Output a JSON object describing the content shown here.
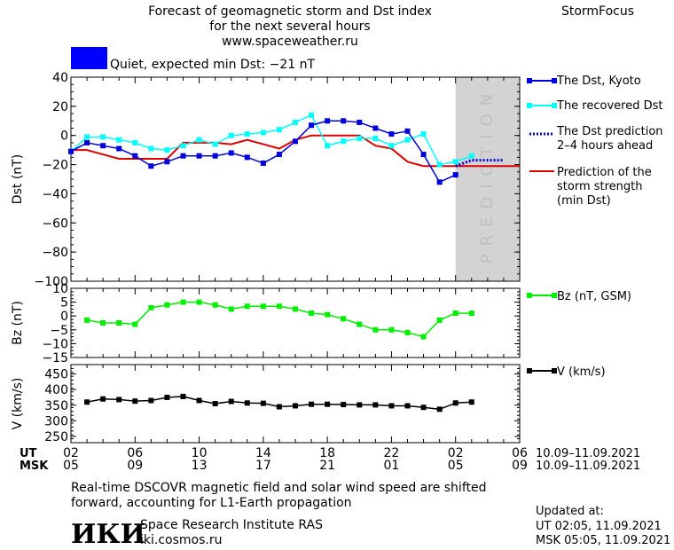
{
  "header": {
    "title_lines": [
      "Forecast of geomagnetic storm and Dst index",
      "for the next several hours",
      "www.spaceweather.ru"
    ],
    "brand": "StormFocus",
    "status_text": "Quiet, expected min Dst: −21 nT"
  },
  "footer": {
    "note_lines": [
      "Real-time DSCOVR magnetic field and solar wind speed are shifted",
      "forward, accounting for L1-Earth propagation"
    ],
    "institute": "Space Research Institute RAS",
    "website": "iki.cosmos.ru",
    "logo_text": "ИКИ",
    "updated_label": "Updated at:",
    "updated_ut": "UT   02:05, 11.09.2021",
    "updated_msk": "MSK 05:05, 11.09.2021"
  },
  "colors": {
    "kyoto": "#0000dd",
    "recovered": "#00ffff",
    "prediction": "#0000dd",
    "strength": "#dd0000",
    "bz": "#00ee00",
    "v": "#000000",
    "prediction_band": "#d3d3d3",
    "status_box": "#0000ff"
  },
  "chart_data": [
    {
      "type": "line",
      "ylabel": "Dst (nT)",
      "ylim": [
        -100,
        40
      ],
      "yticks": [
        "40",
        "20",
        "0",
        "−20",
        "−40",
        "−60",
        "−80",
        "−100"
      ],
      "ytick_values": [
        40,
        20,
        0,
        -20,
        -40,
        -60,
        -80,
        -100
      ],
      "xlim": [
        0,
        28
      ],
      "prediction_band": {
        "x_start": 24,
        "x_end": 28,
        "label": "PREDICTION"
      },
      "series": [
        {
          "name": "The Dst, Kyoto",
          "marker": "square",
          "x": [
            0,
            1,
            2,
            3,
            4,
            5,
            6,
            7,
            8,
            9,
            10,
            11,
            12,
            13,
            14,
            15,
            16,
            17,
            18,
            19,
            20,
            21,
            22,
            23,
            24
          ],
          "y": [
            -11,
            -5,
            -7,
            -9,
            -14,
            -21,
            -18,
            -14,
            -14,
            -14,
            -12,
            -15,
            -19,
            -13,
            -4,
            7,
            10,
            10,
            9,
            5,
            1,
            3,
            -13,
            -32,
            -27
          ]
        },
        {
          "name": "The recovered Dst",
          "marker": "square",
          "x": [
            0,
            1,
            2,
            3,
            4,
            5,
            6,
            7,
            8,
            9,
            10,
            11,
            12,
            13,
            14,
            15,
            16,
            17,
            18,
            19,
            20,
            21,
            22,
            23,
            24,
            25
          ],
          "y": [
            -11,
            -1,
            -1,
            -3,
            -5,
            -9,
            -10,
            -7,
            -3,
            -6,
            0,
            1,
            2,
            4,
            9,
            14,
            -7,
            -4,
            -2,
            -2,
            -7,
            -3,
            1,
            -20,
            -18,
            -14
          ]
        },
        {
          "name": "The Dst prediction 2–4 hours ahead",
          "style": "dotted",
          "x": [
            24,
            25,
            26,
            27
          ],
          "y": [
            -21,
            -17,
            -17,
            -17
          ]
        },
        {
          "name": "Prediction of the storm strength (min Dst)",
          "style": "step",
          "x": [
            0,
            1,
            2,
            3,
            4,
            5,
            6,
            7,
            8,
            9,
            10,
            11,
            12,
            13,
            14,
            15,
            16,
            17,
            18,
            19,
            20,
            21,
            22,
            23,
            24,
            25,
            26,
            27,
            28
          ],
          "y": [
            -10,
            -10,
            -13,
            -16,
            -16,
            -16,
            -16,
            -5,
            -5,
            -5,
            -6,
            -3,
            -6,
            -9,
            -3,
            0,
            0,
            0,
            0,
            -7,
            -9,
            -18,
            -21,
            -21,
            -21,
            -21,
            -21,
            -21,
            -21
          ]
        }
      ]
    },
    {
      "type": "line",
      "ylabel": "Bz (nT)",
      "ylim": [
        -15,
        10
      ],
      "yticks": [
        "10",
        "5",
        "0",
        "−5",
        "−10",
        "−15"
      ],
      "ytick_values": [
        10,
        5,
        0,
        -5,
        -10,
        -15
      ],
      "series": [
        {
          "name": "Bz (nT, GSM)",
          "marker": "square",
          "x": [
            1,
            2,
            3,
            4,
            5,
            6,
            7,
            8,
            9,
            10,
            11,
            12,
            13,
            14,
            15,
            16,
            17,
            18,
            19,
            20,
            21,
            22,
            23,
            24,
            25
          ],
          "y": [
            -1.5,
            -2.5,
            -2.5,
            -3,
            3,
            4,
            5,
            5,
            4,
            2.5,
            3.5,
            3.5,
            3.5,
            2.5,
            1,
            0.5,
            -1,
            -3,
            -5,
            -5,
            -6,
            -7.5,
            -1.5,
            1,
            1
          ]
        }
      ]
    },
    {
      "type": "line",
      "ylabel": "V (km/s)",
      "ylim": [
        230,
        480
      ],
      "yticks": [
        "450",
        "400",
        "350",
        "300",
        "250"
      ],
      "ytick_values": [
        450,
        400,
        350,
        300,
        250
      ],
      "series": [
        {
          "name": "V (km/s)",
          "marker": "square",
          "x": [
            1,
            2,
            3,
            4,
            5,
            6,
            7,
            8,
            9,
            10,
            11,
            12,
            13,
            14,
            15,
            16,
            17,
            18,
            19,
            20,
            21,
            22,
            23,
            24,
            25
          ],
          "y": [
            360,
            370,
            368,
            363,
            365,
            375,
            378,
            365,
            355,
            362,
            357,
            356,
            345,
            348,
            353,
            353,
            352,
            351,
            351,
            348,
            348,
            343,
            337,
            357,
            360
          ]
        }
      ]
    }
  ],
  "xaxis": {
    "ut_label": "UT",
    "msk_label": "MSK",
    "ticks_ut": [
      "02",
      "06",
      "10",
      "14",
      "18",
      "22",
      "02",
      "06"
    ],
    "ticks_msk": [
      "05",
      "09",
      "13",
      "17",
      "21",
      "01",
      "05",
      "09"
    ],
    "tick_x": [
      0,
      4,
      8,
      12,
      16,
      20,
      24,
      28
    ],
    "date_range_ut": "10.09–11.09.2021",
    "date_range_msk": "10.09–11.09.2021"
  }
}
